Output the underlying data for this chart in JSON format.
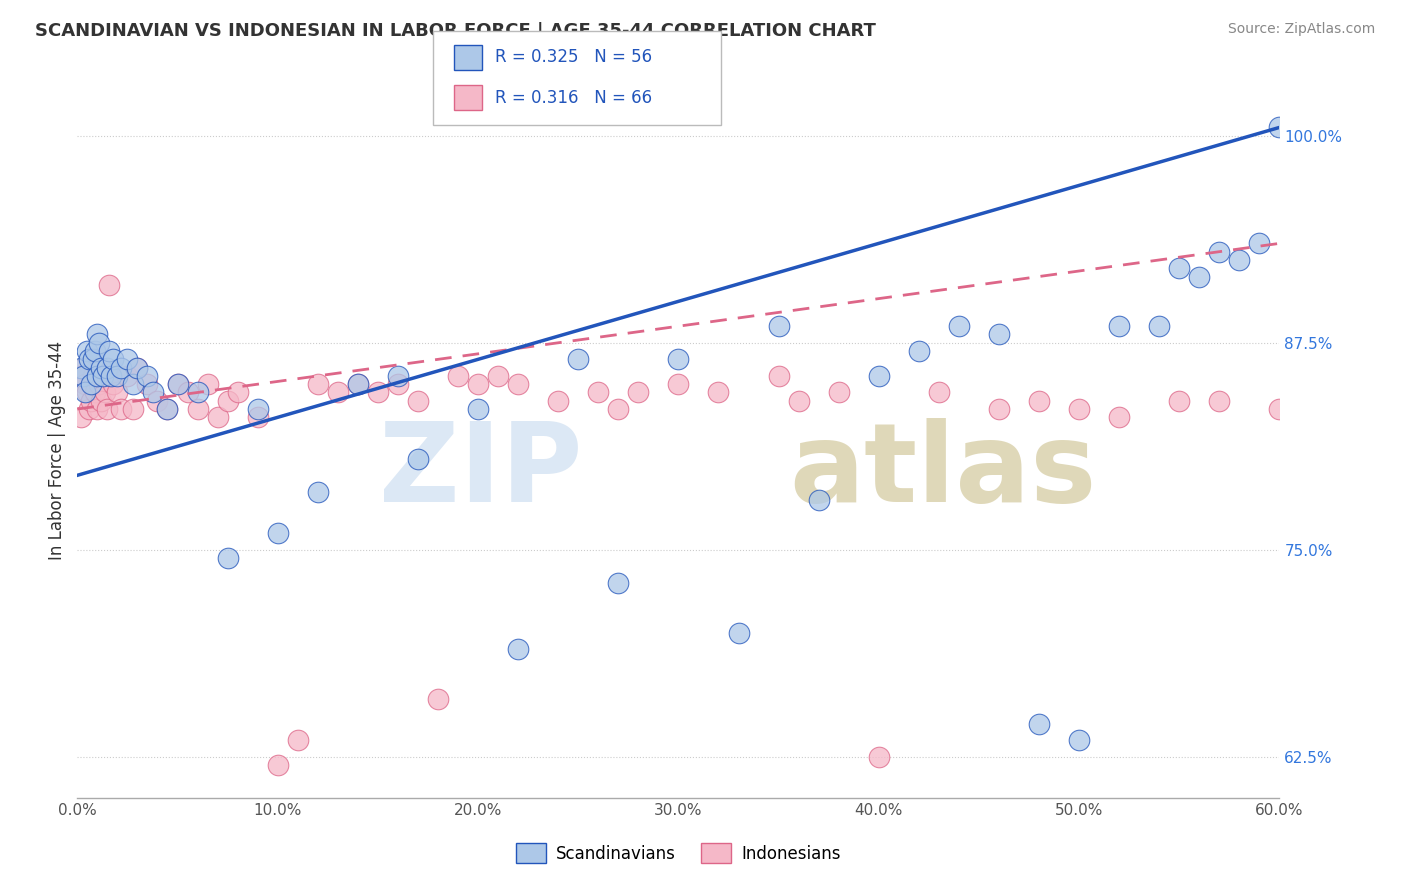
{
  "title": "SCANDINAVIAN VS INDONESIAN IN LABOR FORCE | AGE 35-44 CORRELATION CHART",
  "source": "Source: ZipAtlas.com",
  "xmin": 0.0,
  "xmax": 60.0,
  "ymin": 60.0,
  "ymax": 102.0,
  "scandinavian_color": "#adc8e8",
  "indonesian_color": "#f5b8c8",
  "trend_scand_color": "#2255bb",
  "trend_indo_color": "#dd6688",
  "R_scand": 0.325,
  "N_scand": 56,
  "R_indo": 0.316,
  "N_indo": 66,
  "legend_label_scand": "Scandinavians",
  "legend_label_indo": "Indonesians",
  "ylabel": "In Labor Force | Age 35-44",
  "trend_scand_x0": 0.0,
  "trend_scand_y0": 79.5,
  "trend_scand_x1": 60.0,
  "trend_scand_y1": 100.5,
  "trend_indo_x0": 0.0,
  "trend_indo_y0": 83.5,
  "trend_indo_x1": 60.0,
  "trend_indo_y1": 93.5,
  "scand_x": [
    0.2,
    0.3,
    0.4,
    0.5,
    0.6,
    0.7,
    0.8,
    0.9,
    1.0,
    1.0,
    1.1,
    1.2,
    1.3,
    1.5,
    1.6,
    1.7,
    1.8,
    2.0,
    2.2,
    2.5,
    2.8,
    3.0,
    3.5,
    3.8,
    4.5,
    5.0,
    6.0,
    7.5,
    9.0,
    10.0,
    12.0,
    14.0,
    16.0,
    17.0,
    20.0,
    22.0,
    25.0,
    27.0,
    30.0,
    33.0,
    35.0,
    37.0,
    40.0,
    42.0,
    44.0,
    46.0,
    48.0,
    50.0,
    52.0,
    54.0,
    55.0,
    56.0,
    57.0,
    58.0,
    59.0,
    60.0
  ],
  "scand_y": [
    86.0,
    85.5,
    84.5,
    87.0,
    86.5,
    85.0,
    86.5,
    87.0,
    88.0,
    85.5,
    87.5,
    86.0,
    85.5,
    86.0,
    87.0,
    85.5,
    86.5,
    85.5,
    86.0,
    86.5,
    85.0,
    86.0,
    85.5,
    84.5,
    83.5,
    85.0,
    84.5,
    74.5,
    83.5,
    76.0,
    78.5,
    85.0,
    85.5,
    80.5,
    83.5,
    69.0,
    86.5,
    73.0,
    86.5,
    70.0,
    88.5,
    78.0,
    85.5,
    87.0,
    88.5,
    88.0,
    64.5,
    63.5,
    88.5,
    88.5,
    92.0,
    91.5,
    93.0,
    92.5,
    93.5,
    100.5
  ],
  "indo_x": [
    0.1,
    0.2,
    0.3,
    0.4,
    0.5,
    0.6,
    0.7,
    0.8,
    0.9,
    1.0,
    1.0,
    1.1,
    1.2,
    1.3,
    1.4,
    1.5,
    1.6,
    1.7,
    1.8,
    2.0,
    2.2,
    2.5,
    2.8,
    3.0,
    3.5,
    4.0,
    4.5,
    5.0,
    5.5,
    6.0,
    6.5,
    7.0,
    7.5,
    8.0,
    9.0,
    10.0,
    11.0,
    12.0,
    13.0,
    14.0,
    15.0,
    16.0,
    17.0,
    18.0,
    19.0,
    20.0,
    21.0,
    22.0,
    24.0,
    26.0,
    27.0,
    28.0,
    30.0,
    32.0,
    35.0,
    36.0,
    38.0,
    40.0,
    43.0,
    46.0,
    48.0,
    50.0,
    52.0,
    55.0,
    57.0,
    60.0
  ],
  "indo_y": [
    85.5,
    83.0,
    86.0,
    85.0,
    84.5,
    83.5,
    84.0,
    85.5,
    84.5,
    86.0,
    83.5,
    85.0,
    84.0,
    85.5,
    84.5,
    83.5,
    91.0,
    85.5,
    85.0,
    84.5,
    83.5,
    85.5,
    83.5,
    86.0,
    85.0,
    84.0,
    83.5,
    85.0,
    84.5,
    83.5,
    85.0,
    83.0,
    84.0,
    84.5,
    83.0,
    62.0,
    63.5,
    85.0,
    84.5,
    85.0,
    84.5,
    85.0,
    84.0,
    66.0,
    85.5,
    85.0,
    85.5,
    85.0,
    84.0,
    84.5,
    83.5,
    84.5,
    85.0,
    84.5,
    85.5,
    84.0,
    84.5,
    62.5,
    84.5,
    83.5,
    84.0,
    83.5,
    83.0,
    84.0,
    84.0,
    83.5
  ]
}
